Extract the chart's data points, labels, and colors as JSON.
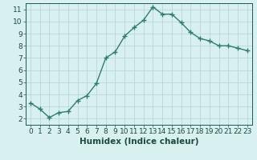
{
  "x": [
    0,
    1,
    2,
    3,
    4,
    5,
    6,
    7,
    8,
    9,
    10,
    11,
    12,
    13,
    14,
    15,
    16,
    17,
    18,
    19,
    20,
    21,
    22,
    23
  ],
  "y": [
    3.3,
    2.8,
    2.1,
    2.5,
    2.6,
    3.5,
    3.9,
    4.9,
    7.0,
    7.5,
    8.8,
    9.5,
    10.1,
    11.2,
    10.6,
    10.6,
    9.9,
    9.1,
    8.6,
    8.4,
    8.0,
    8.0,
    7.8,
    7.6
  ],
  "line_color": "#2e7d6e",
  "marker": "+",
  "marker_size": 4,
  "bg_color": "#d8f0f0",
  "grid_color": "#b8d8d8",
  "xlabel": "Humidex (Indice chaleur)",
  "xlim": [
    -0.5,
    23.5
  ],
  "ylim": [
    1.5,
    11.5
  ],
  "yticks": [
    2,
    3,
    4,
    5,
    6,
    7,
    8,
    9,
    10,
    11
  ],
  "xticks": [
    0,
    1,
    2,
    3,
    4,
    5,
    6,
    7,
    8,
    9,
    10,
    11,
    12,
    13,
    14,
    15,
    16,
    17,
    18,
    19,
    20,
    21,
    22,
    23
  ],
  "tick_color": "#1a5a50",
  "label_color": "#1a4a40",
  "tick_fontsize": 6.5,
  "xlabel_fontsize": 7.5,
  "line_width": 1.0,
  "marker_edge_width": 1.0
}
